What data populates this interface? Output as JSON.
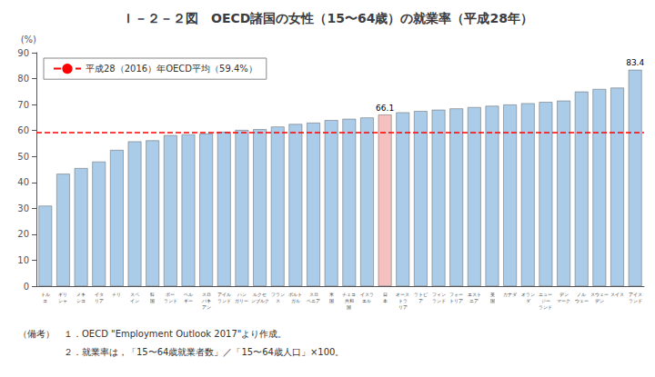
{
  "chart_data": {
    "type": "bar",
    "title": "Ｉ－２－２図　OECD諸国の女性（15〜64歳）の就業率（平成28年）",
    "ylabel": "(%)",
    "categories": [
      "トル\nコ",
      "ギリ\nシャ",
      "メキ\nシコ",
      "イタ\nリア",
      "チリ",
      "スペ\nイン",
      "韓\n国",
      "ポー\nランド",
      "ベル\nギー",
      "スロ\nバキ\nアン",
      "アイル\nランド",
      "ハン\nガリー",
      "ルクセ\nンブルク",
      "フラン\nス",
      "ポルト\nガル",
      "スロ\nベニア",
      "米\n国",
      "チェコ\n共和\n国",
      "イスラ\nエル",
      "日\n本",
      "オース\nトラ\nリア",
      "ラトビ\nア",
      "フィン\nランド",
      "フォー\nトリア",
      "エスト\nニア",
      "英\n国",
      "カナダ",
      "オラン\nダ",
      "ニュー\nジー\nランド",
      "デン\nマーク",
      "ノル\nウェー",
      "スウェー\nデン",
      "スイス",
      "アイス\nランド"
    ],
    "values": [
      31.0,
      43.3,
      45.5,
      48.0,
      52.5,
      55.8,
      56.2,
      58.2,
      58.5,
      58.8,
      59.5,
      60.2,
      60.5,
      61.5,
      62.5,
      63.0,
      64.0,
      64.5,
      65.0,
      66.1,
      67.0,
      67.5,
      68.0,
      68.5,
      69.0,
      69.5,
      70.0,
      70.5,
      71.0,
      71.5,
      75.0,
      76.0,
      76.5,
      83.4
    ],
    "colors": [
      "#aacce8",
      "#aacce8",
      "#aacce8",
      "#aacce8",
      "#aacce8",
      "#aacce8",
      "#aacce8",
      "#aacce8",
      "#aacce8",
      "#aacce8",
      "#aacce8",
      "#aacce8",
      "#aacce8",
      "#aacce8",
      "#aacce8",
      "#aacce8",
      "#aacce8",
      "#aacce8",
      "#aacce8",
      "#f5c0c0",
      "#aacce8",
      "#aacce8",
      "#aacce8",
      "#aacce8",
      "#aacce8",
      "#aacce8",
      "#aacce8",
      "#aacce8",
      "#aacce8",
      "#aacce8",
      "#aacce8",
      "#aacce8",
      "#aacce8",
      "#aacce8"
    ],
    "ylim": [
      0,
      90
    ],
    "yticks": [
      0,
      10,
      20,
      30,
      40,
      50,
      60,
      70,
      80,
      90
    ],
    "grid": false,
    "legend": "upper left",
    "reference_lines": [
      {
        "y": 59.4,
        "label": "平成28（2016）年OECD平均（59.4%）",
        "color": "red",
        "line_style": "dashed"
      }
    ],
    "annotations": [
      {
        "x": "日\n本",
        "y": 66.1,
        "text": "66.1"
      },
      {
        "x": "アイス\nランド",
        "y": 83.4,
        "text": "83.4"
      }
    ],
    "notes": [
      "（備考）　１．OECD \"Employment Outlook 2017\"より作成。",
      "　　　　　２．就業率は，「15〜64歳就業者数」／「15〜64歳人口」×100。"
    ]
  }
}
